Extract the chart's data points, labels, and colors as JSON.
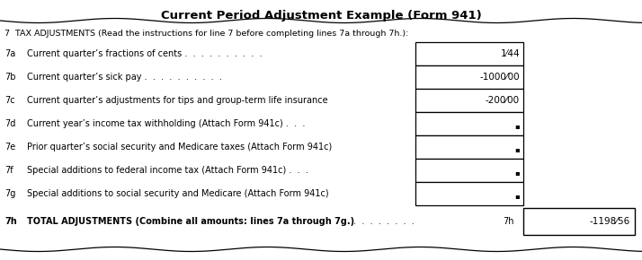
{
  "title": "Current Period Adjustment Example (Form 941)",
  "section_header": "7  TAX ADJUSTMENTS (Read the instructions for line 7 before completing lines 7a through 7h.):",
  "lines": [
    {
      "id": "7a",
      "label": "Current quarter’s fractions of cents",
      "dots": " .  .  .  .  .  .  .  .  .  . ",
      "value": "1⁄44",
      "bullet": false,
      "bold": false
    },
    {
      "id": "7b",
      "label": "Current quarter’s sick pay",
      "dots": " .  .  .  .  .  .  .  .  .  . ",
      "value": "-1000⁄00",
      "bullet": false,
      "bold": false
    },
    {
      "id": "7c",
      "label": "Current quarter’s adjustments for tips and group-term life insurance",
      "dots": "",
      "value": "-200⁄00",
      "bullet": false,
      "bold": false
    },
    {
      "id": "7d",
      "label": "Current year’s income tax withholding (Attach Form 941c)",
      "dots": " .  .  . ",
      "value": "▪",
      "bullet": true,
      "bold": false
    },
    {
      "id": "7e",
      "label": "Prior quarter’s social security and Medicare taxes (Attach Form 941c)",
      "dots": "",
      "value": "▪",
      "bullet": true,
      "bold": false
    },
    {
      "id": "7f",
      "label": "Special additions to federal income tax (Attach Form 941c)",
      "dots": " .  .  . ",
      "value": "▪",
      "bullet": true,
      "bold": false
    },
    {
      "id": "7g",
      "label": "Special additions to social security and Medicare (Attach Form 941c)",
      "dots": "",
      "value": "▪",
      "bullet": true,
      "bold": false
    },
    {
      "id": "7h",
      "label": "TOTAL ADJUSTMENTS (Combine all amounts: lines 7a through 7g.)",
      "dots": " .  .  .  .  .  .  .  . ",
      "ref": "7h",
      "value": "-1198⁄56",
      "bullet": false,
      "bold": true,
      "wide_box": true
    }
  ],
  "bg_color": "#ffffff",
  "border_color": "#000000",
  "text_color": "#000000",
  "title_fontsize": 9.5,
  "label_fontsize": 7.0,
  "wavy_amplitude": 0.007,
  "wavy_frequency": 90
}
